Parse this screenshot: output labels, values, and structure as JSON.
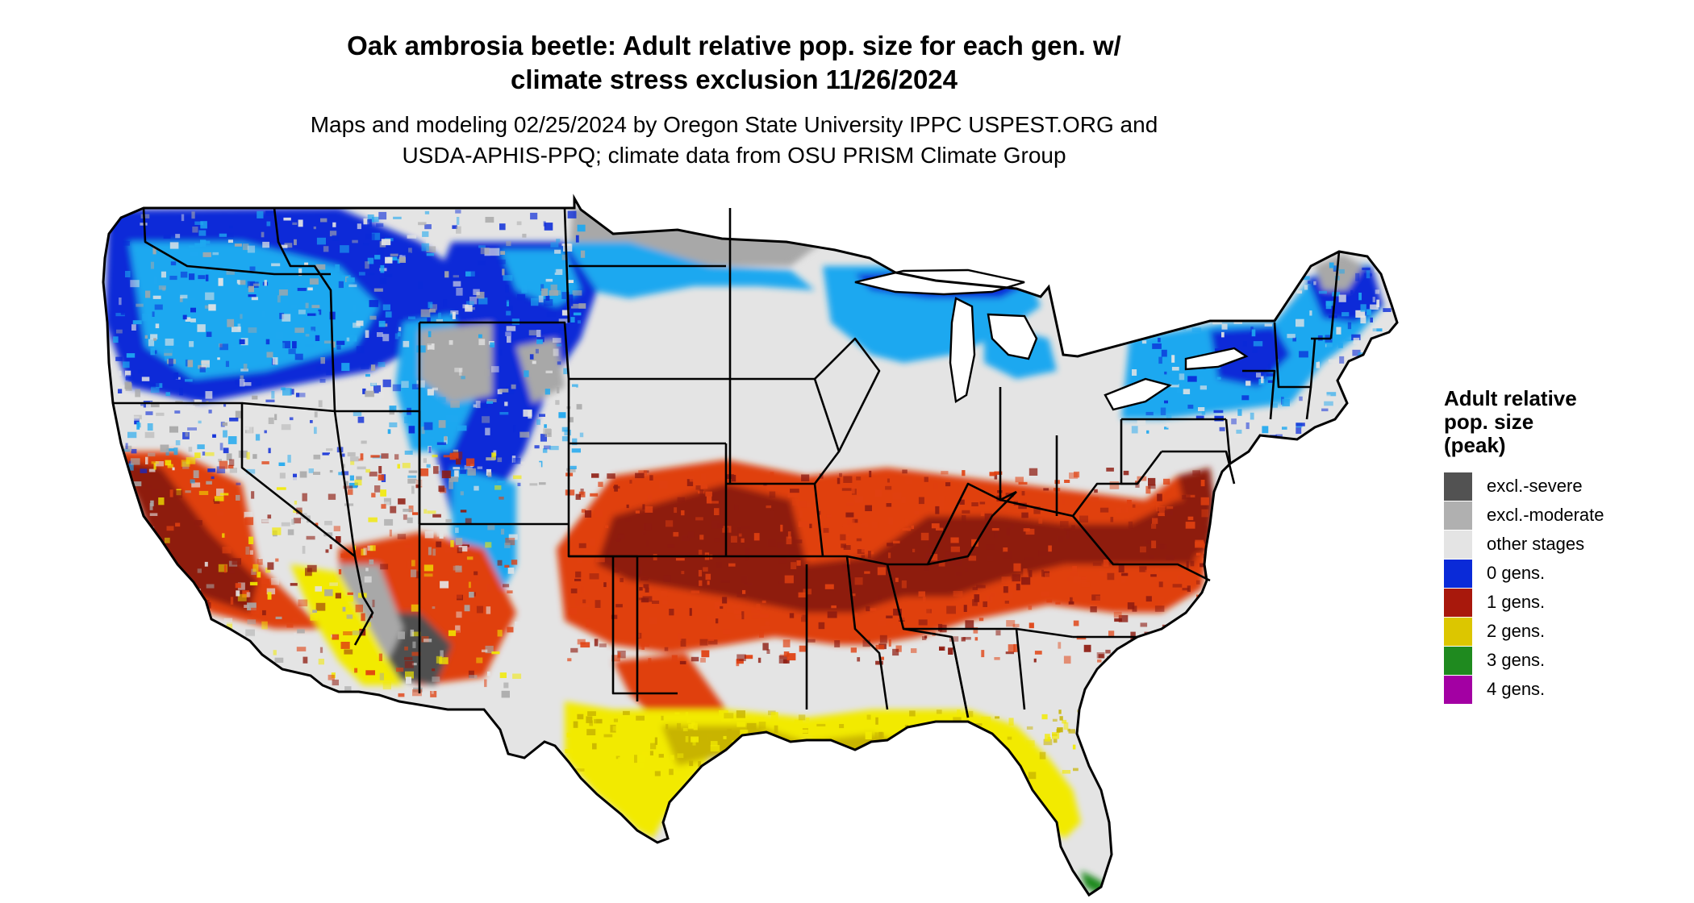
{
  "title": {
    "line1": "Oak ambrosia beetle: Adult relative pop. size for each gen. w/",
    "line2": "climate stress exclusion 11/26/2024"
  },
  "subtitle": {
    "line1": "Maps and modeling 02/25/2024 by Oregon State University IPPC USPEST.ORG and",
    "line2": "USDA-APHIS-PPQ; climate data from OSU PRISM Climate Group"
  },
  "legend": {
    "title_line1": "Adult relative",
    "title_line2": "pop. size",
    "title_line3": "(peak)",
    "items": [
      {
        "label": "excl.-severe",
        "color": "#525252"
      },
      {
        "label": "excl.-moderate",
        "color": "#b0b0b0"
      },
      {
        "label": "other stages",
        "color": "#e4e4e4"
      },
      {
        "label": "0 gens.",
        "color": "#0a2ad8"
      },
      {
        "label": "1 gens.",
        "color": "#a8180c"
      },
      {
        "label": "2 gens.",
        "color": "#dcc600"
      },
      {
        "label": "3 gens.",
        "color": "#1f8a1f"
      },
      {
        "label": "4 gens.",
        "color": "#a300a3"
      }
    ]
  },
  "map": {
    "region": "Contiguous United States",
    "palette": {
      "base": "#e4e4e4",
      "excl_moderate": "#a8a8a8",
      "excl_severe": "#505050",
      "zero_gen_dark": "#0a2ad8",
      "zero_gen_light": "#1ea8f0",
      "one_gen_dark": "#8e1b10",
      "one_gen_light": "#e04010",
      "two_gen": "#f2ea00",
      "two_gen_dark": "#c8b400",
      "three_gen": "#1f8a1f",
      "border": "#000000"
    }
  }
}
